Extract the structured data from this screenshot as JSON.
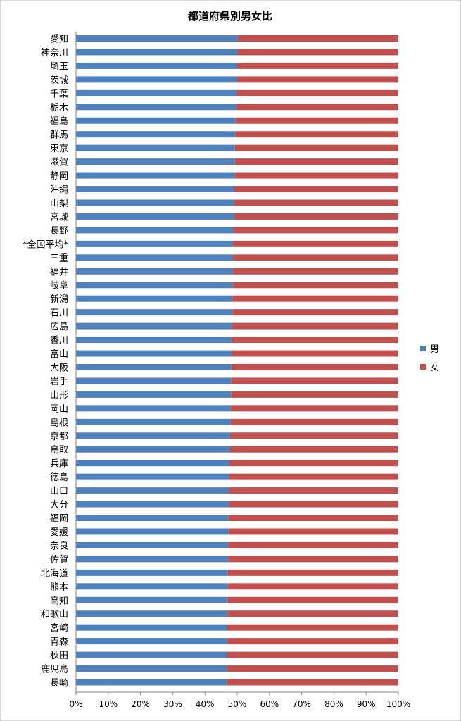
{
  "chart_data": {
    "type": "bar",
    "orientation": "horizontal",
    "stacked": "percent",
    "title": "都道府県別男女比",
    "xlabel": "",
    "ylabel": "",
    "xlim": [
      0,
      100
    ],
    "x_ticks": [
      "0%",
      "10%",
      "20%",
      "30%",
      "40%",
      "50%",
      "60%",
      "70%",
      "80%",
      "90%",
      "100%"
    ],
    "legend_position": "right",
    "grid": false,
    "categories": [
      "愛知",
      "神奈川",
      "埼玉",
      "茨城",
      "千葉",
      "栃木",
      "福島",
      "群馬",
      "東京",
      "滋賀",
      "静岡",
      "沖縄",
      "山梨",
      "宮城",
      "長野",
      "*全国平均*",
      "三重",
      "福井",
      "岐阜",
      "新潟",
      "石川",
      "広島",
      "香川",
      "富山",
      "大阪",
      "岩手",
      "山形",
      "岡山",
      "島根",
      "京都",
      "鳥取",
      "兵庫",
      "徳島",
      "山口",
      "大分",
      "福岡",
      "愛媛",
      "奈良",
      "佐賀",
      "北海道",
      "熊本",
      "高知",
      "和歌山",
      "宮崎",
      "青森",
      "秋田",
      "鹿児島",
      "長崎"
    ],
    "series": [
      {
        "name": "男",
        "color": "#4f81bd",
        "values": [
          50.2,
          50.1,
          50.0,
          50.0,
          49.9,
          49.8,
          49.5,
          49.4,
          49.3,
          49.3,
          49.2,
          49.1,
          49.0,
          49.0,
          48.8,
          48.7,
          48.7,
          48.6,
          48.6,
          48.5,
          48.5,
          48.4,
          48.3,
          48.3,
          48.2,
          48.1,
          48.1,
          48.0,
          48.0,
          47.8,
          47.7,
          47.6,
          47.5,
          47.4,
          47.4,
          47.3,
          47.3,
          47.2,
          47.2,
          47.1,
          47.1,
          47.0,
          47.0,
          46.9,
          46.9,
          46.9,
          46.8,
          46.8
        ]
      },
      {
        "name": "女",
        "color": "#c0504d",
        "values": [
          49.8,
          49.9,
          50.0,
          50.0,
          50.1,
          50.2,
          50.5,
          50.6,
          50.7,
          50.7,
          50.8,
          50.9,
          51.0,
          51.0,
          51.2,
          51.3,
          51.3,
          51.4,
          51.4,
          51.5,
          51.5,
          51.6,
          51.7,
          51.7,
          51.8,
          51.9,
          51.9,
          52.0,
          52.0,
          52.2,
          52.3,
          52.4,
          52.5,
          52.6,
          52.6,
          52.7,
          52.7,
          52.8,
          52.8,
          52.9,
          52.9,
          53.0,
          53.0,
          53.1,
          53.1,
          53.1,
          53.2,
          53.2
        ]
      }
    ]
  }
}
